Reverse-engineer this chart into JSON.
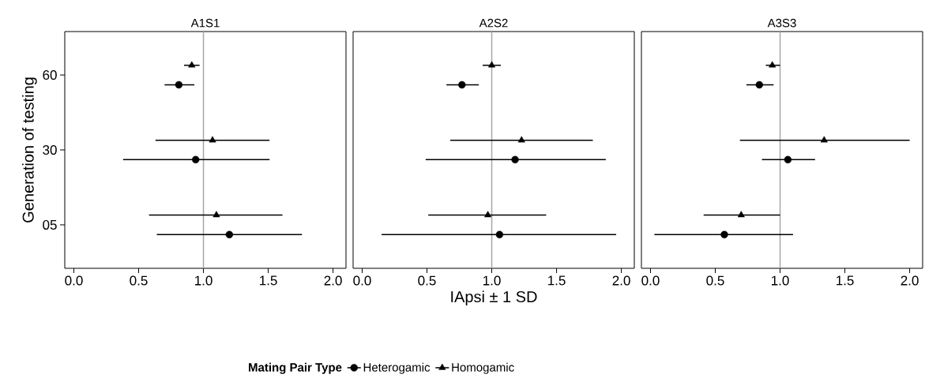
{
  "chart_data": [
    {
      "type": "scatter",
      "orientation": "horizontal",
      "title": "A1S1",
      "ylabel": "Generation of testing",
      "categories": [
        "60",
        "30",
        "05"
      ],
      "xlim": [
        -0.07,
        2.1
      ],
      "xticks": [
        {
          "value": 0,
          "label": "0.0"
        },
        {
          "value": 0.5,
          "label": "0.5"
        },
        {
          "value": 1,
          "label": "1.0"
        },
        {
          "value": 1.5,
          "label": "1.5"
        },
        {
          "value": 2,
          "label": "2.0"
        }
      ],
      "ref_lines": [
        {
          "axis": "x",
          "value": 1,
          "color": "#a6a6a6"
        }
      ],
      "series": [
        {
          "color": "#000000",
          "marker": "circle",
          "values": [
            0.81,
            0.94,
            1.2
          ],
          "errors": [
            [
              0.7,
              0.93
            ],
            [
              0.38,
              1.51
            ],
            [
              0.64,
              1.76
            ]
          ]
        },
        {
          "color": "#000000",
          "marker": "triangle",
          "values": [
            0.91,
            1.07,
            1.1
          ],
          "errors": [
            [
              0.85,
              0.97
            ],
            [
              0.63,
              1.51
            ],
            [
              0.58,
              1.61
            ]
          ]
        }
      ]
    },
    {
      "type": "scatter",
      "orientation": "horizontal",
      "title": "A2S2",
      "xlabel": "IApsi ± 1 SD",
      "legend": "bottom",
      "legend_title": "Mating Pair Type",
      "tick_labels": "x",
      "categories": [
        "60",
        "30",
        "05"
      ],
      "xlim": [
        -0.07,
        2.1
      ],
      "xticks": [
        {
          "value": 0,
          "label": "0.0"
        },
        {
          "value": 0.5,
          "label": "0.5"
        },
        {
          "value": 1,
          "label": "1.0"
        },
        {
          "value": 1.5,
          "label": "1.5"
        },
        {
          "value": 2,
          "label": "2.0"
        }
      ],
      "ref_lines": [
        {
          "axis": "x",
          "value": 1,
          "color": "#a6a6a6"
        }
      ],
      "series": [
        {
          "name": "Heterogamic",
          "color": "#000000",
          "marker": "circle",
          "values": [
            0.77,
            1.18,
            1.06
          ],
          "errors": [
            [
              0.65,
              0.9
            ],
            [
              0.49,
              1.88
            ],
            [
              0.15,
              1.96
            ]
          ]
        },
        {
          "name": "Homogamic",
          "color": "#000000",
          "marker": "triangle",
          "values": [
            1.0,
            1.23,
            0.97
          ],
          "errors": [
            [
              0.93,
              1.07
            ],
            [
              0.68,
              1.78
            ],
            [
              0.51,
              1.42
            ]
          ]
        }
      ]
    },
    {
      "type": "scatter",
      "orientation": "horizontal",
      "title": "A3S3",
      "tick_labels": "x",
      "categories": [
        "60",
        "30",
        "05"
      ],
      "xlim": [
        -0.07,
        2.1
      ],
      "xticks": [
        {
          "value": 0,
          "label": "0.0"
        },
        {
          "value": 0.5,
          "label": "0.5"
        },
        {
          "value": 1,
          "label": "1.0"
        },
        {
          "value": 1.5,
          "label": "1.5"
        },
        {
          "value": 2,
          "label": "2.0"
        }
      ],
      "ref_lines": [
        {
          "axis": "x",
          "value": 1,
          "color": "#a6a6a6"
        }
      ],
      "series": [
        {
          "color": "#000000",
          "marker": "circle",
          "values": [
            0.84,
            1.06,
            0.57
          ],
          "errors": [
            [
              0.74,
              0.95
            ],
            [
              0.86,
              1.27
            ],
            [
              0.03,
              1.1
            ]
          ]
        },
        {
          "color": "#000000",
          "marker": "triangle",
          "values": [
            0.94,
            1.34,
            0.7
          ],
          "errors": [
            [
              0.89,
              1.0
            ],
            [
              0.69,
              2.0
            ],
            [
              0.41,
              1.0
            ]
          ]
        }
      ]
    }
  ]
}
